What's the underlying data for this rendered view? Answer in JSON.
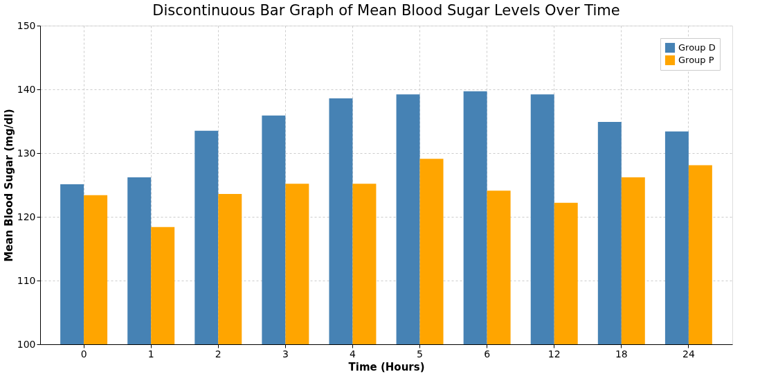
{
  "chart_data": {
    "type": "bar",
    "title": "Discontinuous Bar Graph of Mean Blood Sugar Levels Over Time",
    "xlabel": "Time (Hours)",
    "ylabel": "Mean Blood Sugar (mg/dl)",
    "categories": [
      "0",
      "1",
      "2",
      "3",
      "4",
      "5",
      "6",
      "12",
      "18",
      "24"
    ],
    "series": [
      {
        "name": "Group D",
        "color": "#4682b4",
        "values": [
          125.1,
          126.2,
          133.5,
          135.9,
          138.6,
          139.2,
          139.7,
          139.2,
          134.9,
          133.4
        ]
      },
      {
        "name": "Group P",
        "color": "#ffa500",
        "values": [
          123.4,
          118.4,
          123.6,
          125.2,
          125.2,
          129.1,
          124.1,
          122.2,
          126.2,
          128.1
        ]
      }
    ],
    "ylim": [
      100,
      150
    ],
    "yticks": [
      100,
      110,
      120,
      130,
      140,
      150
    ],
    "grid": true,
    "legend": "top right"
  }
}
